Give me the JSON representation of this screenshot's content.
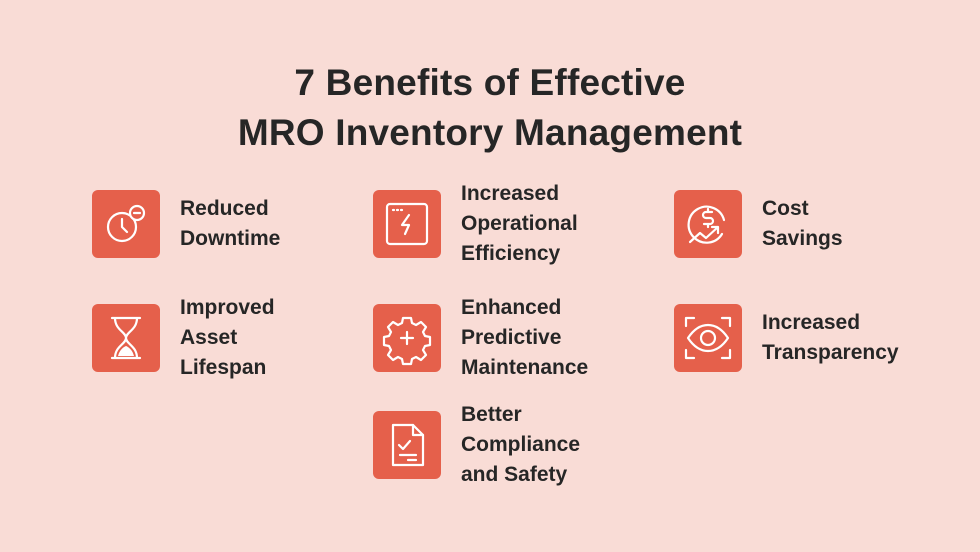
{
  "title": {
    "lines": [
      "7 Benefits of Effective",
      "MRO Inventory Management"
    ]
  },
  "benefits": [
    {
      "lines": [
        "Reduced",
        "Downtime"
      ]
    },
    {
      "lines": [
        "Increased",
        "Operational",
        "Efficiency"
      ]
    },
    {
      "lines": [
        "Cost",
        "Savings"
      ]
    },
    {
      "lines": [
        "Improved",
        "Asset",
        "Lifespan"
      ]
    },
    {
      "lines": [
        "Enhanced",
        "Predictive",
        "Maintenance"
      ]
    },
    {
      "lines": [
        "Increased",
        "Transparency"
      ]
    },
    {
      "lines": [
        "Better",
        "Compliance",
        "and Safety"
      ]
    }
  ]
}
